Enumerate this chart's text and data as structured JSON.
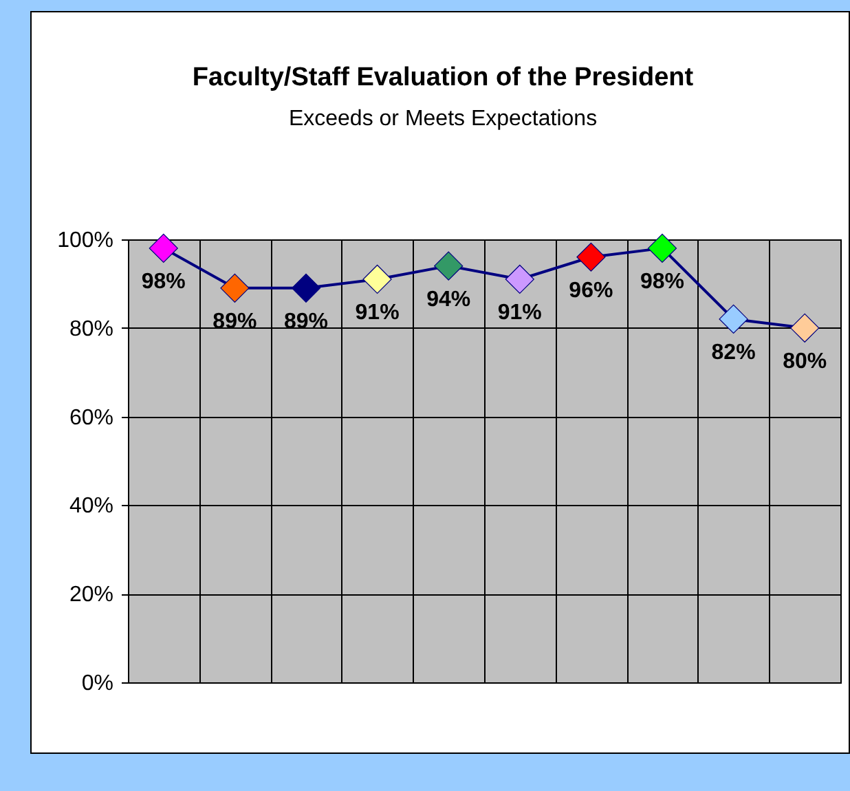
{
  "chart_data": {
    "type": "line",
    "title": "Faculty/Staff Evaluation of the President",
    "subtitle": "Exceeds or Meets Expectations",
    "categories": [
      null,
      null,
      null,
      null,
      null,
      null,
      null,
      null,
      null,
      null
    ],
    "series": [
      {
        "color": "#000080",
        "colors": [
          "#ff00ff",
          "#ff6600",
          "#000080",
          "#ffff99",
          "#339966",
          "#cc99ff",
          "#ff0000",
          "#00ff00",
          "#99ccff",
          "#ffcc99"
        ],
        "values": [
          98,
          89,
          89,
          91,
          94,
          91,
          96,
          98,
          82,
          80
        ],
        "value_labels": [
          "98%",
          "89%",
          "89%",
          "91%",
          "94%",
          "91%",
          "96%",
          "98%",
          "82%",
          "80%"
        ]
      }
    ],
    "ylim": [
      0,
      100
    ],
    "yticks": [
      {
        "value": 0,
        "label": "0%"
      },
      {
        "value": 20,
        "label": "20%"
      },
      {
        "value": 40,
        "label": "40%"
      },
      {
        "value": 60,
        "label": "60%"
      },
      {
        "value": 80,
        "label": "80%"
      },
      {
        "value": 100,
        "label": "100%"
      }
    ],
    "grid": true,
    "marker": "diamond",
    "line_style": "solid"
  }
}
